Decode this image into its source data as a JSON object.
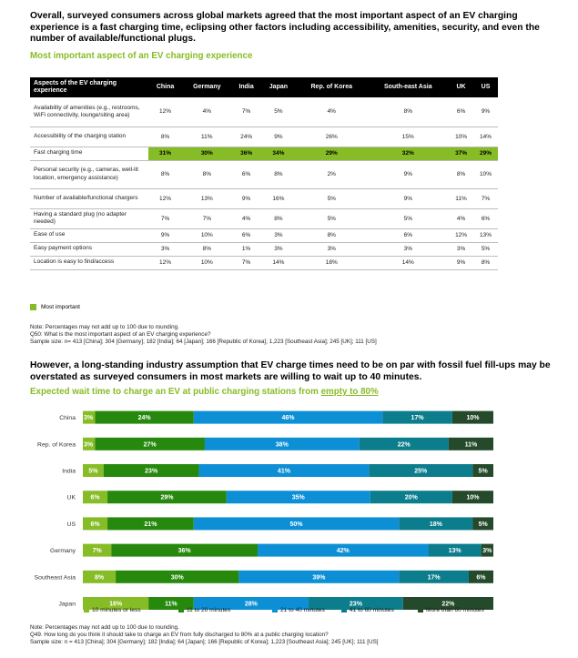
{
  "section1": {
    "heading": "Overall, surveyed consumers across global markets agreed that the most important aspect of an EV charging experience is a fast charging time, eclipsing other factors including accessibility, amenities, security, and even the number of available/functional plugs.",
    "subheading": "Most important aspect of an EV charging experience",
    "table": {
      "header_first": "Aspects of the EV charging experience",
      "columns": [
        "China",
        "Germany",
        "India",
        "Japan",
        "Rep. of Korea",
        "South-east Asia",
        "UK",
        "US"
      ],
      "rows": [
        {
          "label": "Availability of amenities (e.g., restrooms, WiFi connectivity, lounge/siting area)",
          "values": [
            "12%",
            "4%",
            "7%",
            "5%",
            "4%",
            "8%",
            "6%",
            "9%"
          ]
        },
        {
          "label": "Accessibility of the charging station",
          "values": [
            "8%",
            "11%",
            "24%",
            "9%",
            "26%",
            "15%",
            "10%",
            "14%"
          ]
        },
        {
          "label": "Fast charging time",
          "values": [
            "31%",
            "30%",
            "36%",
            "34%",
            "29%",
            "32%",
            "37%",
            "29%"
          ],
          "highlight": true
        },
        {
          "label": "Personal security (e.g., cameras, well-lit location, emergency assistance)",
          "values": [
            "8%",
            "8%",
            "6%",
            "8%",
            "2%",
            "9%",
            "8%",
            "10%"
          ]
        },
        {
          "label": "Number of available/functional chargers",
          "values": [
            "12%",
            "13%",
            "9%",
            "16%",
            "5%",
            "9%",
            "11%",
            "7%"
          ]
        },
        {
          "label": "Having a standard plug (no adapter needed)",
          "values": [
            "7%",
            "7%",
            "4%",
            "8%",
            "5%",
            "5%",
            "4%",
            "6%"
          ]
        },
        {
          "label": "Ease of use",
          "values": [
            "9%",
            "10%",
            "6%",
            "3%",
            "8%",
            "6%",
            "12%",
            "13%"
          ]
        },
        {
          "label": "Easy payment options",
          "values": [
            "3%",
            "8%",
            "1%",
            "3%",
            "3%",
            "3%",
            "3%",
            "5%"
          ]
        },
        {
          "label": "Location is easy to find/access",
          "values": [
            "12%",
            "10%",
            "7%",
            "14%",
            "18%",
            "14%",
            "9%",
            "8%"
          ]
        }
      ]
    },
    "legend": "Most important",
    "note_lines": [
      "Note: Percentages may not add up to 100 due to rounding.",
      "Q50: What is the most important aspect of an EV charging experience?",
      "Sample size: n= 413 [China]; 304 [Germany]; 182 [India]; 64 [Japan]; 166 [Republic of Korea]; 1,223 [Southeast Asia]; 245 [UK]; 111 [US]"
    ]
  },
  "section2": {
    "heading": "However, a long-standing industry assumption that EV charge times need to be on par with fossil fuel fill-ups may be overstated as surveyed consumers in most markets are willing to wait up to 40 minutes.",
    "subheading_main": "Expected wait time to charge an EV at public charging stations from ",
    "subheading_underlined": "empty to 80%",
    "note_lines": [
      "Note: Percentages may not add up to 100 due to rounding.",
      "Q49. How long do you think it should take to charge an EV from fully discharged to 80% at a public charging location?",
      "Sample size: n = 413 [China]; 304 [Germany]; 182 [India]; 64 [Japan]; 166 [Republic of Korea]; 1,223 [Southeast Asia]; 245 [UK]; 111 [US]"
    ]
  },
  "colors": {
    "accent_green": "#86bc25",
    "seg": [
      "#86bc25",
      "#26890d",
      "#0d8fd6",
      "#0b7d8c",
      "#25492b"
    ]
  },
  "chart_data": {
    "type": "bar",
    "orientation": "horizontal",
    "stacked": true,
    "categories": [
      "China",
      "Rep. of Korea",
      "India",
      "UK",
      "US",
      "Germany",
      "Southeast Asia",
      "Japan"
    ],
    "series": [
      {
        "name": "10 minutes or less",
        "values": [
          3,
          3,
          5,
          6,
          6,
          7,
          8,
          16
        ],
        "labels": [
          "3%",
          "3%",
          "5%",
          "6%",
          "6%",
          "7%",
          "8%",
          "16%"
        ]
      },
      {
        "name": "11 to 20 minutes",
        "values": [
          24,
          27,
          23,
          29,
          21,
          36,
          30,
          11
        ],
        "labels": [
          "24%",
          "27%",
          "23%",
          "29%",
          "21%",
          "36%",
          "30%",
          "11%"
        ]
      },
      {
        "name": "21 to 40 minutes",
        "values": [
          46,
          38,
          41,
          35,
          50,
          42,
          39,
          28
        ],
        "labels": [
          "46%",
          "38%",
          "41%",
          "35%",
          "50%",
          "42%",
          "39%",
          "28%"
        ]
      },
      {
        "name": "41 to 60 minutes",
        "values": [
          17,
          22,
          25,
          20,
          18,
          13,
          17,
          23
        ],
        "labels": [
          "17%",
          "22%",
          "25%",
          "20%",
          "18%",
          "13%",
          "17%",
          "23%"
        ]
      },
      {
        "name": "More than 60 minutes",
        "values": [
          10,
          11,
          5,
          10,
          5,
          3,
          6,
          22
        ],
        "labels": [
          "10%",
          "11%",
          "5%",
          "10%",
          "5%",
          "3%",
          "6%",
          "22%"
        ]
      }
    ],
    "xlim": [
      0,
      100
    ],
    "legend_position": "bottom"
  }
}
